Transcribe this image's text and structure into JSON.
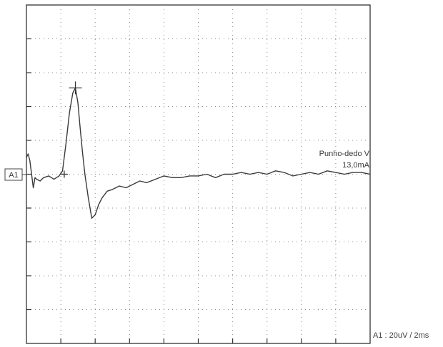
{
  "chart_data": {
    "type": "line",
    "title": "",
    "xlabel": "",
    "ylabel": "",
    "grid": true,
    "grid_divisions": {
      "x": 10,
      "y": 10
    },
    "xlim": [
      0,
      20
    ],
    "ylim": [
      -100,
      100
    ],
    "channel_label": "A1",
    "trace_name": "Punho-dedo V",
    "stimulus": "13,0mA",
    "scale_label": "A1 : 20uV / 2ms",
    "series": [
      {
        "color": "#3a3a3a",
        "x": [
          0.0,
          0.1,
          0.2,
          0.3,
          0.4,
          0.5,
          0.6,
          0.8,
          1.0,
          1.3,
          1.6,
          1.9,
          2.1,
          2.3,
          2.5,
          2.7,
          2.85,
          3.0,
          3.1,
          3.25,
          3.4,
          3.6,
          3.8,
          4.0,
          4.2,
          4.4,
          4.7,
          5.0,
          5.4,
          5.8,
          6.2,
          6.6,
          7.0,
          7.5,
          8.0,
          8.5,
          9.0,
          9.5,
          10.0,
          10.5,
          11.0,
          11.5,
          12.0,
          12.5,
          13.0,
          13.5,
          14.0,
          14.5,
          15.0,
          15.5,
          16.0,
          16.5,
          17.0,
          17.5,
          18.0,
          18.5,
          19.0,
          19.5,
          20.0
        ],
        "y": [
          10,
          12,
          8,
          0,
          -8,
          -2,
          -3,
          -4,
          -2,
          -1,
          -3,
          -1,
          2,
          18,
          36,
          48,
          51,
          42,
          30,
          14,
          0,
          -14,
          -26,
          -24,
          -18,
          -14,
          -10,
          -9,
          -7,
          -8,
          -6,
          -4,
          -5,
          -3,
          -1,
          -2,
          -2,
          -1,
          -1,
          0,
          -2,
          0,
          0,
          1,
          0,
          1,
          0,
          2,
          1,
          -1,
          0,
          1,
          0,
          2,
          1,
          0,
          1,
          1,
          0
        ]
      }
    ],
    "cursors": [
      {
        "x": 2.2,
        "y": 0
      },
      {
        "x": 2.85,
        "y": 51
      }
    ]
  }
}
